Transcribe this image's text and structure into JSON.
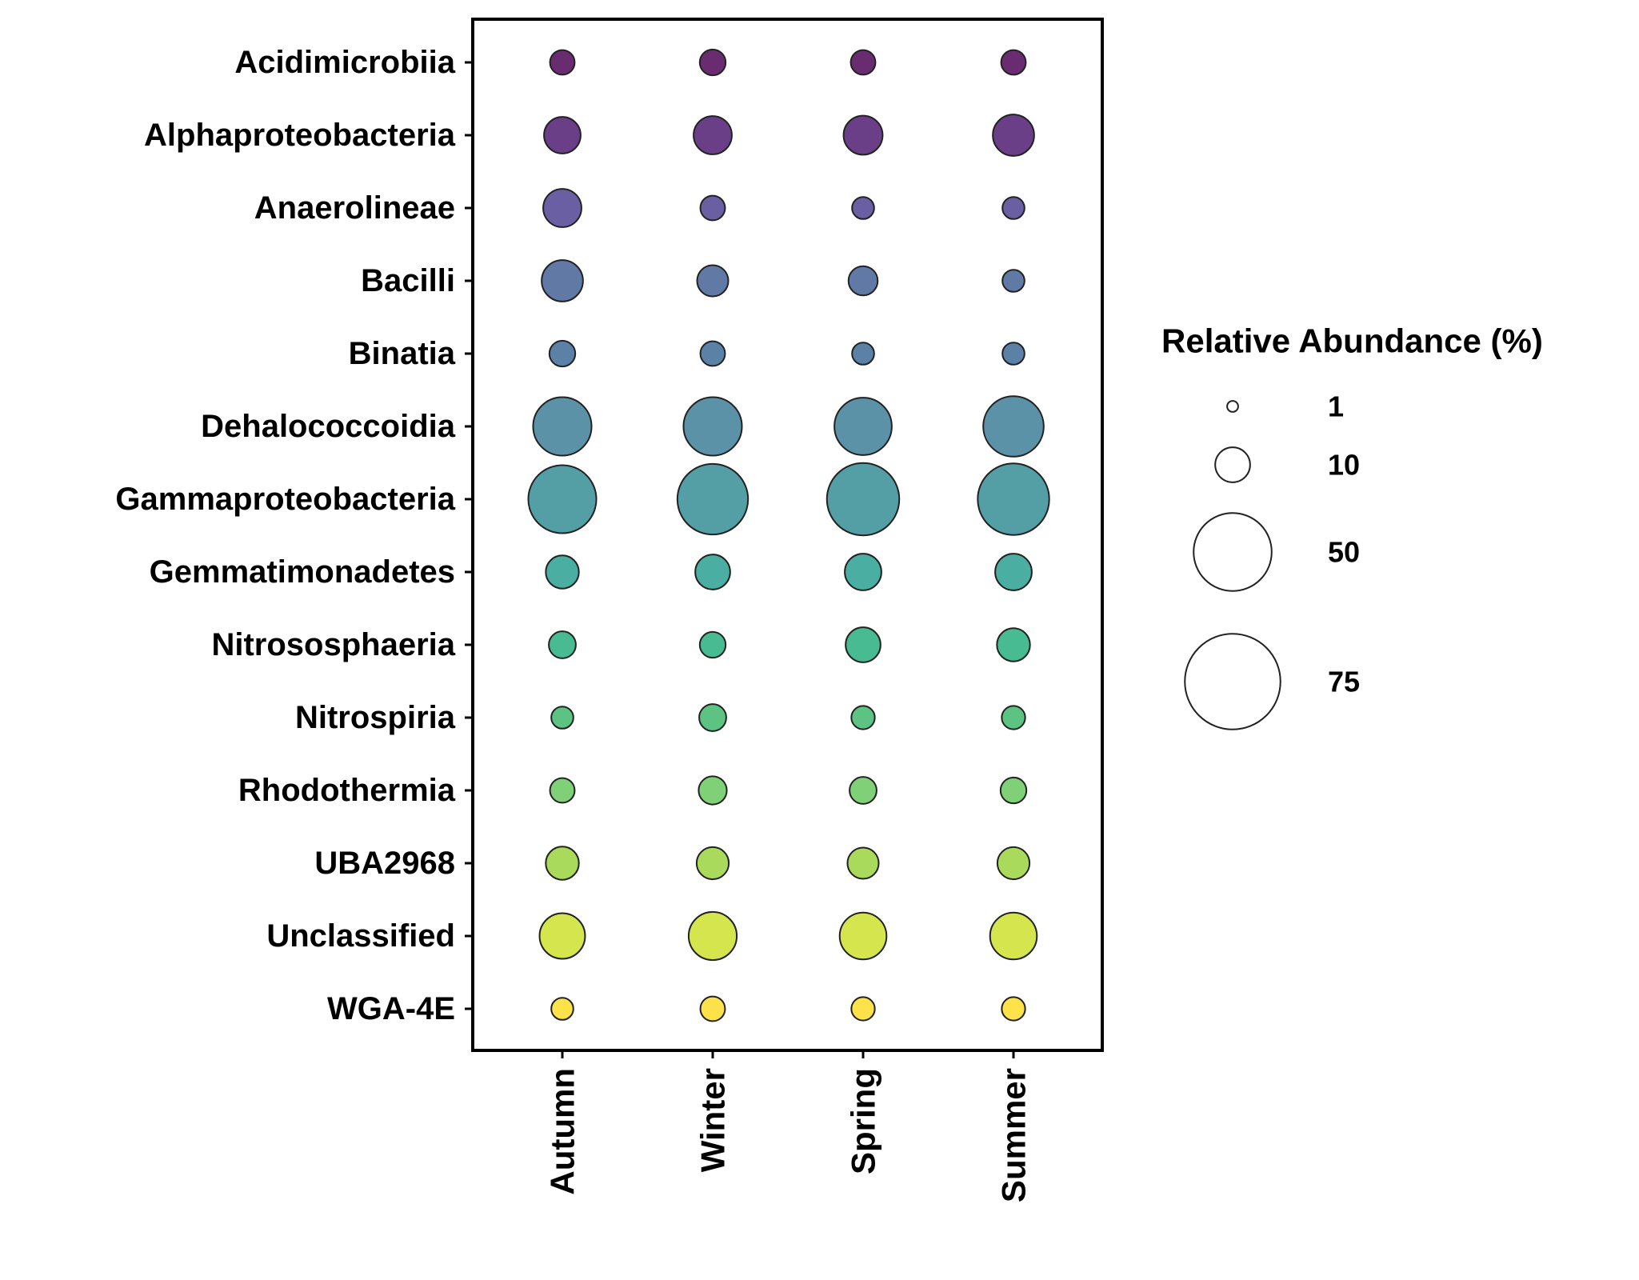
{
  "chart_data": {
    "type": "scatter",
    "subtype": "bubble",
    "title": "",
    "xlabel": "",
    "ylabel": "",
    "categories_x": [
      "Autumn",
      "Winter",
      "Spring",
      "Summer"
    ],
    "categories_y": [
      "Acidimicrobiia",
      "Alphaproteobacteria",
      "Anaerolineae",
      "Bacilli",
      "Binatia",
      "Dehalococcoidia",
      "Gammaproteobacteria",
      "Gemmatimonadetes",
      "Nitrososphaeria",
      "Nitrospiria",
      "Rhodothermia",
      "UBA2968",
      "Unclassified",
      "WGA-4E"
    ],
    "series": [
      {
        "name": "Acidimicrobiia",
        "color": "#6a2c70",
        "values": [
          5,
          5.5,
          5,
          5
        ]
      },
      {
        "name": "Alphaproteobacteria",
        "color": "#6b3f87",
        "values": [
          11,
          12,
          12.5,
          14
        ]
      },
      {
        "name": "Anaerolineae",
        "color": "#6a5fa2",
        "values": [
          12,
          5,
          4,
          4
        ]
      },
      {
        "name": "Bacilli",
        "color": "#617aa5",
        "values": [
          14,
          8,
          7,
          4
        ]
      },
      {
        "name": "Binatia",
        "color": "#5b82a6",
        "values": [
          5.5,
          5,
          4,
          4
        ]
      },
      {
        "name": "Dehalococcoidia",
        "color": "#5b92a8",
        "values": [
          28,
          28,
          27,
          30
        ]
      },
      {
        "name": "Gammaproteobacteria",
        "color": "#549ea6",
        "values": [
          38,
          41,
          43,
          42
        ]
      },
      {
        "name": "Gemmatimonadetes",
        "color": "#4aaea2",
        "values": [
          9,
          10,
          11,
          11
        ]
      },
      {
        "name": "Nitrososphaeria",
        "color": "#48bb92",
        "values": [
          6,
          5.5,
          10,
          9
        ]
      },
      {
        "name": "Nitrospiria",
        "color": "#5dc383",
        "values": [
          4,
          6,
          4.5,
          4.5
        ]
      },
      {
        "name": "Rhodothermia",
        "color": "#7fd076",
        "values": [
          5,
          6.5,
          6,
          5.5
        ]
      },
      {
        "name": "UBA2968",
        "color": "#a9da5c",
        "values": [
          9,
          8.5,
          8,
          8.5
        ]
      },
      {
        "name": "Unclassified",
        "color": "#d4e54e",
        "values": [
          17,
          19,
          18,
          18
        ]
      },
      {
        "name": "WGA-4E",
        "color": "#fde24a",
        "values": [
          4,
          5,
          4.5,
          4.5
        ]
      }
    ],
    "size_legend": {
      "title": "Relative Abundance (%)",
      "values": [
        1,
        10,
        50,
        75
      ],
      "labels": [
        "1",
        "10",
        "50",
        "75"
      ],
      "placement": "right"
    },
    "color_scale": "viridis",
    "grid": false,
    "stroke_color": "#222222"
  }
}
